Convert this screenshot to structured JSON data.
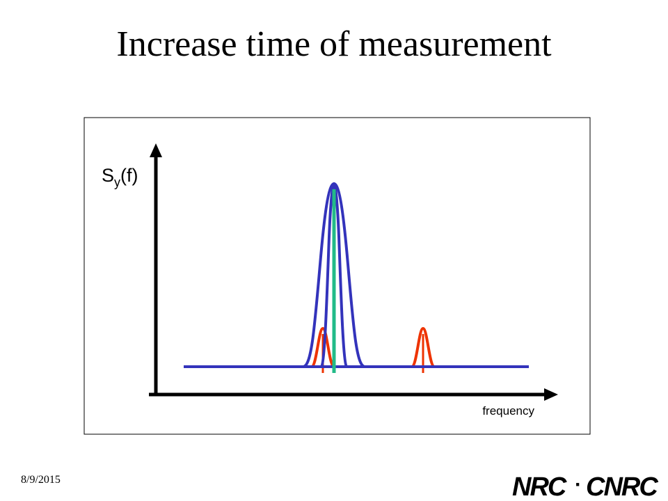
{
  "slide": {
    "title": "Increase time of measurement",
    "date": "8/9/2015"
  },
  "diagram": {
    "y_label_main": "S",
    "y_label_sub": "y",
    "y_label_tail": "(f)",
    "x_label": "frequency",
    "colors": {
      "axis": "#000000",
      "frame": "#000000",
      "wide_peak": "#3333bb",
      "narrow_peaks": "#ee3300",
      "center_line": "#22bb88"
    }
  },
  "logo": {
    "text_left": "NRC",
    "separator": "·",
    "text_right": "CNRC",
    "icon": "nrc-cnrc-wordmark"
  }
}
